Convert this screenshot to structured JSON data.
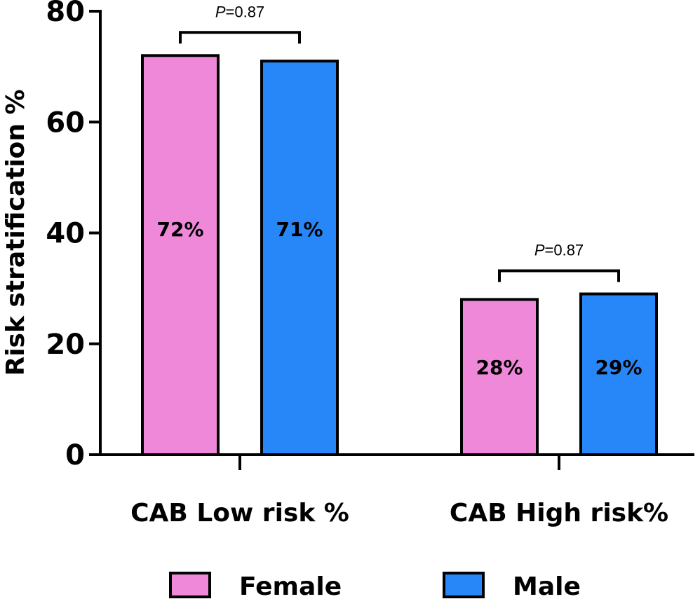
{
  "chart_data": {
    "type": "bar",
    "title": "",
    "xlabel": "",
    "ylabel": "Risk stratification %",
    "ylim": [
      0,
      80
    ],
    "yticks": [
      0,
      20,
      40,
      60,
      80
    ],
    "grid": false,
    "categories": [
      "CAB Low risk %",
      "CAB High risk%"
    ],
    "series": [
      {
        "name": "Female",
        "color": "#f088da",
        "values": [
          72,
          28
        ],
        "labels": [
          "72%",
          "28%"
        ]
      },
      {
        "name": "Male",
        "color": "#2887f8",
        "values": [
          71,
          29
        ],
        "labels": [
          "71%",
          "29%"
        ]
      }
    ],
    "annotations": [
      {
        "category": 0,
        "p_symbol": "P",
        "p_value": "=0.87"
      },
      {
        "category": 1,
        "p_symbol": "P",
        "p_value": "=0.87"
      }
    ],
    "legend": {
      "placement": "bottom",
      "entries": [
        "Female",
        "Male"
      ]
    }
  }
}
